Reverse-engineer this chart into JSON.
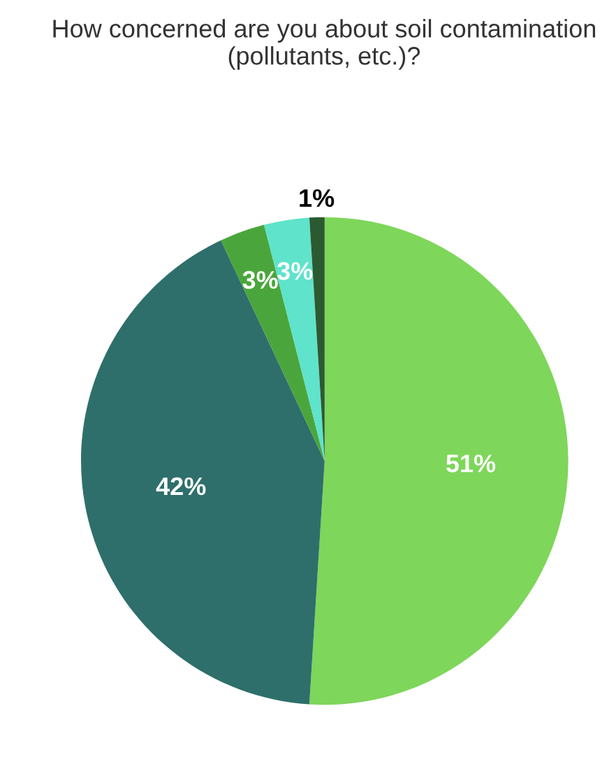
{
  "chart_data": {
    "type": "pie",
    "title": "How concerned are you about soil contamination (pollutants, etc.)?",
    "categories": [
      null,
      null,
      null,
      null,
      null
    ],
    "values": [
      51,
      42,
      3,
      3,
      1
    ],
    "colors": [
      "#7ed65a",
      "#2e6f6b",
      "#4aa63c",
      "#5fe3cb",
      "#2c5a30"
    ],
    "value_labels": [
      "51%",
      "42%",
      "3%",
      "3%",
      "1%"
    ]
  }
}
